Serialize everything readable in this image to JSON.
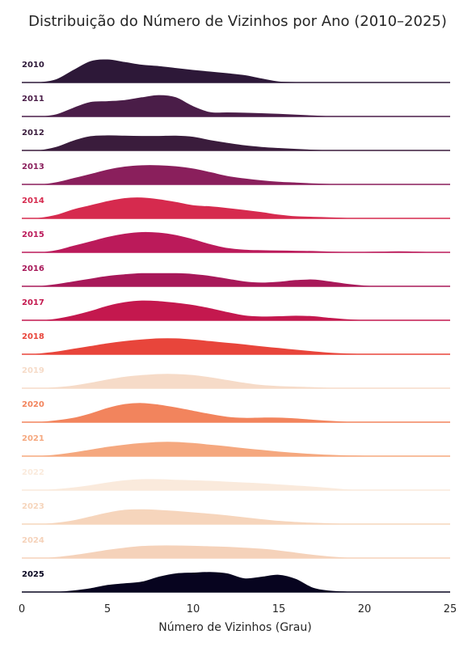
{
  "chart_data": {
    "type": "area",
    "subtype": "ridgeline",
    "title": "Distribuição do Número de Vizinhos por Ano (2010–2025)",
    "xlabel": "Número de Vizinhos (Grau)",
    "ylabel": "",
    "xlim": [
      0,
      25
    ],
    "x_ticks": [
      "0",
      "5",
      "10",
      "15",
      "20",
      "25"
    ],
    "x_tick_values": [
      0,
      5,
      10,
      15,
      20,
      25
    ],
    "grid": false,
    "x": [
      0,
      1,
      2,
      3,
      4,
      5,
      6,
      7,
      8,
      9,
      10,
      11,
      12,
      13,
      14,
      15,
      16,
      17,
      18,
      19,
      20,
      21,
      22,
      23,
      24,
      25
    ],
    "series": [
      {
        "name": "2010",
        "color": "#2d1838",
        "values": [
          0.0,
          0.03,
          0.14,
          0.48,
          0.8,
          0.86,
          0.77,
          0.67,
          0.62,
          0.55,
          0.48,
          0.42,
          0.36,
          0.29,
          0.17,
          0.06,
          0.04,
          0.03,
          0.02,
          0.03,
          0.03,
          0.02,
          0.01,
          0.0,
          0.0,
          0.0
        ]
      },
      {
        "name": "2011",
        "color": "#4a1d48",
        "values": [
          0.0,
          0.02,
          0.1,
          0.34,
          0.55,
          0.58,
          0.62,
          0.72,
          0.8,
          0.72,
          0.4,
          0.18,
          0.17,
          0.16,
          0.14,
          0.12,
          0.09,
          0.06,
          0.03,
          0.01,
          0.0,
          0.0,
          0.0,
          0.0,
          0.0,
          0.0
        ]
      },
      {
        "name": "2012",
        "color": "#3a1c3c",
        "values": [
          0.0,
          0.03,
          0.15,
          0.38,
          0.54,
          0.57,
          0.56,
          0.55,
          0.55,
          0.56,
          0.52,
          0.4,
          0.3,
          0.21,
          0.15,
          0.11,
          0.08,
          0.05,
          0.03,
          0.01,
          0.0,
          0.0,
          0.0,
          0.0,
          0.0,
          0.0
        ]
      },
      {
        "name": "2013",
        "color": "#8a1f5c",
        "values": [
          0.0,
          0.02,
          0.1,
          0.25,
          0.4,
          0.56,
          0.67,
          0.72,
          0.72,
          0.68,
          0.6,
          0.47,
          0.33,
          0.24,
          0.17,
          0.12,
          0.09,
          0.06,
          0.04,
          0.02,
          0.01,
          0.0,
          0.0,
          0.0,
          0.0,
          0.0
        ]
      },
      {
        "name": "2014",
        "color": "#d62a4e",
        "values": [
          0.0,
          0.04,
          0.15,
          0.35,
          0.5,
          0.65,
          0.76,
          0.78,
          0.72,
          0.62,
          0.5,
          0.46,
          0.4,
          0.33,
          0.25,
          0.16,
          0.1,
          0.08,
          0.06,
          0.04,
          0.03,
          0.02,
          0.01,
          0.0,
          0.0,
          0.0
        ]
      },
      {
        "name": "2015",
        "color": "#bb1a5a",
        "values": [
          0.0,
          0.02,
          0.1,
          0.26,
          0.42,
          0.58,
          0.7,
          0.76,
          0.74,
          0.65,
          0.5,
          0.32,
          0.18,
          0.12,
          0.1,
          0.09,
          0.08,
          0.07,
          0.05,
          0.04,
          0.04,
          0.05,
          0.06,
          0.05,
          0.03,
          0.01
        ]
      },
      {
        "name": "2016",
        "color": "#a81859",
        "values": [
          0.0,
          0.03,
          0.1,
          0.2,
          0.3,
          0.4,
          0.46,
          0.5,
          0.5,
          0.5,
          0.47,
          0.4,
          0.3,
          0.2,
          0.16,
          0.19,
          0.25,
          0.27,
          0.2,
          0.11,
          0.05,
          0.02,
          0.01,
          0.0,
          0.0,
          0.0
        ]
      },
      {
        "name": "2017",
        "color": "#c4184e",
        "values": [
          0.0,
          0.02,
          0.08,
          0.2,
          0.36,
          0.55,
          0.68,
          0.74,
          0.72,
          0.66,
          0.58,
          0.46,
          0.32,
          0.2,
          0.16,
          0.17,
          0.19,
          0.17,
          0.11,
          0.06,
          0.03,
          0.01,
          0.0,
          0.0,
          0.0,
          0.0
        ]
      },
      {
        "name": "2018",
        "color": "#e8453b",
        "values": [
          0.0,
          0.05,
          0.12,
          0.22,
          0.32,
          0.42,
          0.5,
          0.56,
          0.6,
          0.6,
          0.56,
          0.5,
          0.44,
          0.38,
          0.31,
          0.25,
          0.19,
          0.13,
          0.08,
          0.05,
          0.03,
          0.02,
          0.01,
          0.01,
          0.01,
          0.0
        ]
      },
      {
        "name": "2019",
        "color": "#f6dbc8",
        "values": [
          0.0,
          0.02,
          0.06,
          0.12,
          0.22,
          0.34,
          0.44,
          0.5,
          0.54,
          0.54,
          0.5,
          0.42,
          0.32,
          0.22,
          0.14,
          0.1,
          0.08,
          0.06,
          0.04,
          0.02,
          0.01,
          0.0,
          0.0,
          0.0,
          0.0,
          0.0
        ]
      },
      {
        "name": "2020",
        "color": "#f2845d",
        "values": [
          0.0,
          0.03,
          0.09,
          0.18,
          0.34,
          0.54,
          0.68,
          0.72,
          0.66,
          0.56,
          0.44,
          0.32,
          0.22,
          0.18,
          0.19,
          0.19,
          0.16,
          0.11,
          0.07,
          0.04,
          0.02,
          0.01,
          0.01,
          0.01,
          0.0,
          0.0
        ]
      },
      {
        "name": "2021",
        "color": "#f5a87f",
        "values": [
          0.0,
          0.03,
          0.08,
          0.16,
          0.26,
          0.36,
          0.44,
          0.5,
          0.54,
          0.54,
          0.5,
          0.44,
          0.38,
          0.31,
          0.25,
          0.19,
          0.14,
          0.1,
          0.07,
          0.05,
          0.04,
          0.03,
          0.02,
          0.02,
          0.01,
          0.0
        ]
      },
      {
        "name": "2022",
        "color": "#faeadc",
        "values": [
          0.0,
          0.02,
          0.06,
          0.12,
          0.2,
          0.3,
          0.38,
          0.42,
          0.42,
          0.4,
          0.38,
          0.36,
          0.33,
          0.3,
          0.27,
          0.23,
          0.19,
          0.15,
          0.1,
          0.05,
          0.02,
          0.01,
          0.0,
          0.0,
          0.0,
          0.0
        ]
      },
      {
        "name": "2023",
        "color": "#f6d5bc",
        "values": [
          0.0,
          0.02,
          0.07,
          0.16,
          0.3,
          0.44,
          0.54,
          0.56,
          0.54,
          0.5,
          0.45,
          0.4,
          0.34,
          0.27,
          0.2,
          0.14,
          0.1,
          0.07,
          0.05,
          0.03,
          0.02,
          0.01,
          0.0,
          0.0,
          0.0,
          0.0
        ]
      },
      {
        "name": "2024",
        "color": "#f5d2ba",
        "values": [
          0.0,
          0.02,
          0.06,
          0.13,
          0.22,
          0.32,
          0.4,
          0.46,
          0.48,
          0.48,
          0.47,
          0.45,
          0.43,
          0.4,
          0.36,
          0.3,
          0.22,
          0.14,
          0.08,
          0.04,
          0.02,
          0.01,
          0.0,
          0.0,
          0.0,
          0.0
        ]
      },
      {
        "name": "2025",
        "color": "#07041f",
        "values": [
          0.0,
          0.01,
          0.03,
          0.08,
          0.16,
          0.28,
          0.34,
          0.4,
          0.58,
          0.7,
          0.73,
          0.75,
          0.7,
          0.52,
          0.58,
          0.65,
          0.5,
          0.18,
          0.07,
          0.04,
          0.03,
          0.03,
          0.02,
          0.01,
          0.0,
          0.0
        ]
      }
    ]
  }
}
